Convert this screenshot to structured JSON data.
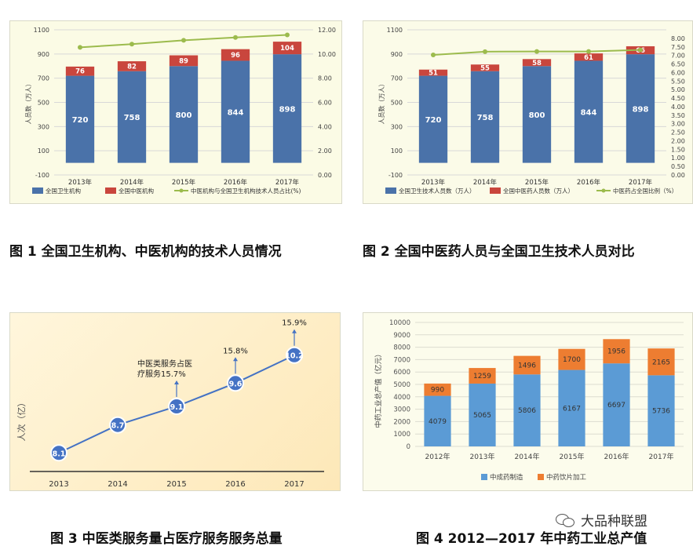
{
  "chart_data": [
    {
      "type": "bar",
      "stacked": true,
      "title": "图 1  全国卫生机构、中医机构的技术人员情况",
      "categories": [
        "2013年",
        "2014年",
        "2015年",
        "2016年",
        "2017年"
      ],
      "ylabel": "人员数（万人）",
      "ylim": [
        -100,
        1100
      ],
      "yticks": [
        "-100",
        "100",
        "300",
        "500",
        "700",
        "900",
        "1100"
      ],
      "y2lim": [
        0,
        12
      ],
      "y2ticks": [
        "0.00",
        "2.00",
        "4.00",
        "6.00",
        "8.00",
        "10.00",
        "12.00"
      ],
      "series": [
        {
          "name": "全国卫生机构",
          "values": [
            720,
            758,
            800,
            844,
            898
          ],
          "color": "#4a72a9",
          "labels": [
            "720",
            "758",
            "800",
            "844",
            "898"
          ]
        },
        {
          "name": "全国中医机构",
          "values": [
            76,
            82,
            89,
            96,
            104
          ],
          "color": "#c9463d",
          "labels": [
            "76",
            "82",
            "89",
            "96",
            "104"
          ]
        },
        {
          "name": "中医机构与全国卫生机构技术人员占比(%)",
          "type": "line",
          "axis": "right",
          "values": [
            10.55,
            10.82,
            11.13,
            11.37,
            11.58
          ],
          "color": "#9cbb4d"
        }
      ],
      "legend": "bottom"
    },
    {
      "type": "bar",
      "stacked": true,
      "title": "图 2  全国中医药人员与全国卫生技术人员对比",
      "categories": [
        "2013年",
        "2014年",
        "2015年",
        "2016年",
        "2017年"
      ],
      "ylabel": "人员数（万人）",
      "ylim": [
        -100,
        1100
      ],
      "yticks": [
        "-100",
        "100",
        "300",
        "500",
        "700",
        "900",
        "1100"
      ],
      "y2lim": [
        0,
        8.5
      ],
      "y2ticks": [
        "0.00",
        "0.50",
        "1.00",
        "1.50",
        "2.00",
        "2.50",
        "3.00",
        "3.50",
        "4.00",
        "4.50",
        "5.00",
        "5.50",
        "6.00",
        "6.50",
        "7.00",
        "7.50",
        "8.00"
      ],
      "series": [
        {
          "name": "全国卫生技术人员数（万人）",
          "values": [
            720,
            758,
            800,
            844,
            898
          ],
          "color": "#4a72a9",
          "labels": [
            "720",
            "758",
            "800",
            "844",
            "898"
          ]
        },
        {
          "name": "全国中医药人员数（万人）",
          "values": [
            51,
            55,
            58,
            61,
            66
          ],
          "color": "#c9463d",
          "labels": [
            "51",
            "55",
            "58",
            "61",
            "66"
          ]
        },
        {
          "name": "中医药占全国比例（%）",
          "type": "line",
          "axis": "right",
          "values": [
            7.03,
            7.22,
            7.23,
            7.23,
            7.32
          ],
          "color": "#9cbb4d"
        }
      ],
      "legend": "bottom"
    },
    {
      "type": "line",
      "title": "图 3  中医类服务量占医疗服务服务总量",
      "categories": [
        "2013",
        "2014",
        "2015",
        "2016",
        "2017"
      ],
      "ylabel": "人次（亿）",
      "ylim": [
        7.7,
        10.6
      ],
      "series": [
        {
          "values": [
            8.1,
            8.7,
            9.1,
            9.6,
            10.2
          ],
          "labels": [
            "8.1",
            "8.7",
            "9.1",
            "9.6",
            "10.2"
          ],
          "color": "#4472c4"
        }
      ],
      "annotations": [
        {
          "text": "中医类服务占医\n疗服务15.7%",
          "category": "2015"
        },
        {
          "text": "15.8%",
          "category": "2016"
        },
        {
          "text": "15.9%",
          "category": "2017"
        }
      ]
    },
    {
      "type": "bar",
      "stacked": true,
      "title": "图 4 2012—2017 年中药工业总产值",
      "categories": [
        "2012年",
        "2013年",
        "2014年",
        "2015年",
        "2016年",
        "2017年"
      ],
      "ylabel": "中药工业总产值（亿元）",
      "ylim": [
        0,
        10000
      ],
      "yticks": [
        "0",
        "1000",
        "2000",
        "3000",
        "4000",
        "5000",
        "6000",
        "7000",
        "8000",
        "9000",
        "10000"
      ],
      "series": [
        {
          "name": "中成药制造",
          "values": [
            4079,
            5065,
            5806,
            6167,
            6697,
            5736
          ],
          "color": "#5b9bd5",
          "labels": [
            "4079",
            "5065",
            "5806",
            "6167",
            "6697",
            "5736"
          ]
        },
        {
          "name": "中药饮片加工",
          "values": [
            990,
            1259,
            1496,
            1700,
            1956,
            2165
          ],
          "color": "#ed7d31",
          "labels": [
            "990",
            "1259",
            "1496",
            "1700",
            "1956",
            "2165"
          ]
        }
      ],
      "legend": "bottom"
    }
  ],
  "watermark": "大品种联盟"
}
